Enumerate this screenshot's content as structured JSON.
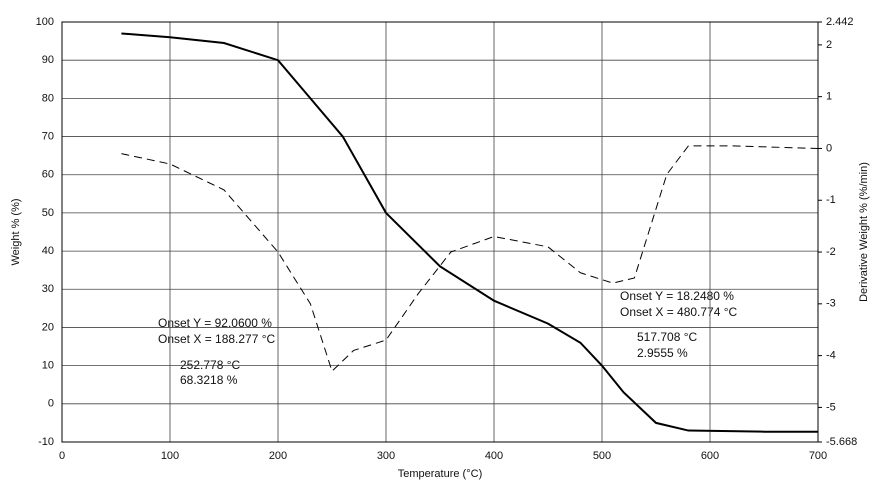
{
  "chart_data": {
    "type": "line",
    "x_label": "Temperature (°C)",
    "y_label": "Weight % (%)",
    "y2_label": "Derivative Weight % (%/min)",
    "xlim": [
      0,
      700
    ],
    "xticks": [
      0,
      100,
      200,
      300,
      400,
      500,
      600,
      700
    ],
    "ylim": [
      -10,
      100
    ],
    "yticks": [
      -10,
      0,
      10,
      20,
      30,
      40,
      50,
      60,
      70,
      80,
      90,
      100
    ],
    "y2lim": [
      -5.668,
      2.442
    ],
    "y2ticks": [
      -5.668,
      -5,
      -4,
      -3,
      -2,
      -1,
      0,
      1,
      2,
      2.442
    ],
    "grid": true,
    "series": [
      {
        "color": "#000000",
        "dashed": false,
        "axis": "y",
        "x": [
          55,
          100,
          150,
          200,
          230,
          260,
          300,
          350,
          400,
          450,
          480,
          500,
          520,
          550,
          580,
          650,
          700
        ],
        "values": [
          97,
          96,
          94.5,
          90,
          80,
          70,
          50,
          36,
          27,
          21,
          16,
          10,
          3,
          -5,
          -7,
          -7.3,
          -7.3
        ]
      },
      {
        "color": "#000000",
        "dashed": true,
        "axis": "y2",
        "x": [
          55,
          100,
          150,
          200,
          230,
          250,
          270,
          300,
          330,
          360,
          400,
          450,
          480,
          510,
          530,
          560,
          580,
          620,
          700
        ],
        "values": [
          -0.1,
          -0.3,
          -0.8,
          -2.0,
          -3.0,
          -4.3,
          -3.9,
          -3.7,
          -2.8,
          -2.0,
          -1.7,
          -1.9,
          -2.4,
          -2.6,
          -2.5,
          -0.5,
          0.05,
          0.05,
          0.0
        ]
      }
    ],
    "annotations": [
      "Onset Y = 92.0600 %",
      "Onset X = 188.277 °C",
      "252.778 °C",
      "68.3218 %",
      "Onset Y = 18.2480 %",
      "Onset X = 480.774 °C",
      "517.708 °C",
      "2.9555 %"
    ]
  }
}
